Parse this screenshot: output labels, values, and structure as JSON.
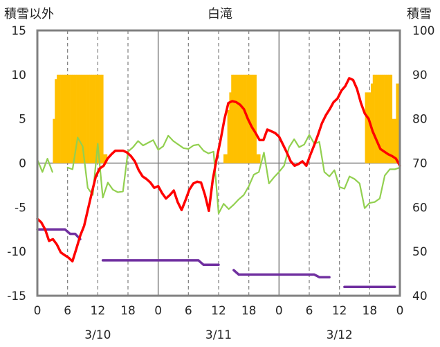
{
  "chart_data": {
    "type": "bar+line",
    "title": "白滝",
    "ylabel_left": "積雪以外",
    "ylabel_right": "積雪",
    "ylim_left": [
      -15,
      15
    ],
    "ylim_right": [
      40,
      100
    ],
    "yticks_left": [
      15,
      10,
      5,
      0,
      -5,
      -10,
      -15
    ],
    "yticks_right": [
      100,
      90,
      80,
      70,
      60,
      50,
      40
    ],
    "x_hour_labels": [
      "0",
      "6",
      "12",
      "18",
      "0",
      "6",
      "12",
      "18",
      "0",
      "6",
      "12",
      "18",
      "0"
    ],
    "x_date_labels": [
      "3/10",
      "3/11",
      "3/12"
    ],
    "grid": "dashed vertical every 6h, solid at day boundaries",
    "colors": {
      "snow_depth": "#ffc000",
      "red": "#ff0000",
      "green": "#92d050",
      "purple": "#7030a0"
    },
    "series": [
      {
        "axis": "right",
        "style": "bar",
        "color": "#ffc000",
        "values": [
          null,
          null,
          null,
          null,
          null,
          null,
          null,
          null,
          80,
          89,
          90,
          90,
          90,
          90,
          90,
          90,
          90,
          90,
          90,
          90,
          90,
          90,
          90,
          90,
          90,
          90,
          90,
          90,
          90,
          90,
          90,
          90,
          90,
          90,
          72,
          72,
          null,
          null,
          null,
          null,
          null,
          null,
          null,
          null,
          null,
          null,
          null,
          null,
          null,
          null,
          null,
          null,
          null,
          null,
          null,
          null,
          null,
          null,
          null,
          null,
          null,
          null,
          null,
          null,
          null,
          null,
          null,
          null,
          null,
          null,
          null,
          null,
          null,
          null,
          null,
          null,
          null,
          null,
          null,
          null,
          null,
          null,
          null,
          null,
          null,
          null,
          null,
          null,
          null,
          null,
          null,
          null,
          null,
          null,
          null,
          null,
          72,
          72,
          82,
          86,
          90,
          90,
          90,
          90,
          90,
          90,
          90,
          90,
          90,
          90,
          90,
          90,
          90,
          72,
          72,
          null,
          null,
          null,
          null,
          null,
          null,
          null,
          null,
          null,
          null,
          null,
          null,
          null,
          null,
          null,
          null,
          null,
          null,
          null,
          null,
          null,
          null,
          null,
          null,
          null,
          null,
          null,
          null,
          null,
          null,
          null,
          null,
          null,
          null,
          null,
          null,
          null,
          null,
          null,
          null,
          null,
          null,
          null,
          null,
          null,
          null,
          null,
          null,
          null,
          null,
          null,
          null,
          null,
          null,
          86,
          86,
          86,
          88,
          90,
          90,
          90,
          90,
          90,
          90,
          90,
          90,
          90,
          90,
          80,
          80,
          88,
          88
        ]
      },
      {
        "axis": "left",
        "style": "line",
        "color": "#ff0000",
        "values": [
          -6.3,
          -6.7,
          -7.5,
          -8.8,
          -8.6,
          -9.2,
          -10.1,
          -10.4,
          -10.7,
          -11.1,
          -9.7,
          -8.2,
          -7.1,
          -5.2,
          -3.3,
          -1.5,
          -0.6,
          -0.3,
          0.5,
          1.0,
          1.4,
          1.4,
          1.4,
          1.2,
          0.8,
          0.2,
          -0.8,
          -1.5,
          -1.8,
          -2.2,
          -2.8,
          -2.6,
          -3.4,
          -4.0,
          -3.6,
          -3.1,
          -4.4,
          -5.3,
          -4.2,
          -3.0,
          -2.3,
          -2.1,
          -2.2,
          -3.6,
          -5.4,
          -1.9,
          0.5,
          2.6,
          5.0,
          6.8,
          7.0,
          6.9,
          6.6,
          6.1,
          5.0,
          4.1,
          3.4,
          2.6,
          2.6,
          3.8,
          3.6,
          3.4,
          3.0,
          2.1,
          1.2,
          0.2,
          -0.3,
          -0.1,
          0.2,
          -0.3,
          0.9,
          2.0,
          3.2,
          4.5,
          5.4,
          6.1,
          6.9,
          7.3,
          8.2,
          8.7,
          9.6,
          9.4,
          8.4,
          6.8,
          5.6,
          5.0,
          3.6,
          2.6,
          1.6,
          1.3,
          1.0,
          0.8,
          0.5,
          -0.3
        ],
        "x_start_hour": 0,
        "x_step_hours": 0.75
      },
      {
        "axis": "left",
        "style": "line",
        "color": "#92d050",
        "segments": [
          {
            "x": [
              0,
              1,
              2,
              3
            ],
            "values": [
              0.4,
              -1.0,
              0.5,
              -1.0
            ]
          },
          {
            "x": [
              6,
              7,
              8,
              9,
              10,
              11,
              12,
              13,
              14,
              15,
              16,
              17,
              18,
              19,
              20,
              21,
              22,
              23,
              24,
              25,
              26,
              27,
              28,
              29,
              30,
              31,
              32,
              33,
              34,
              35,
              36,
              37,
              38,
              39,
              40,
              41,
              42,
              43,
              44,
              45,
              46,
              47,
              48,
              49,
              50,
              51,
              52,
              53,
              54,
              55,
              56,
              57,
              58,
              59,
              60,
              61,
              62,
              63,
              64,
              65,
              66,
              67,
              68,
              69,
              70,
              71,
              72
            ],
            "values": [
              -0.5,
              -0.7,
              2.9,
              1.9,
              -2.8,
              -3.6,
              2.2,
              -3.9,
              -2.2,
              -3.0,
              -3.3,
              -3.2,
              1.3,
              1.8,
              2.5,
              2.0,
              2.3,
              2.6,
              1.5,
              1.9,
              3.1,
              2.5,
              2.1,
              1.7,
              1.6,
              2.0,
              2.1,
              1.4,
              1.1,
              1.3,
              -5.7,
              -4.6,
              -5.2,
              -4.7,
              -4.1,
              -3.6,
              -2.6,
              -1.3,
              -1.0,
              1.2,
              -2.3,
              -1.6,
              -1.0,
              -0.3,
              1.8,
              2.7,
              1.8,
              2.1,
              3.2,
              2.2,
              2.4,
              -1.0,
              -1.5,
              -0.8,
              -2.7,
              -2.9,
              -1.5,
              -1.8,
              -2.3,
              -5.1,
              -4.5,
              -4.4,
              -4.0,
              -1.4,
              -0.7,
              -0.7,
              -0.5
            ]
          }
        ]
      },
      {
        "axis": "left",
        "style": "line",
        "color": "#7030a0",
        "segments": [
          {
            "x": [
              0,
              5.5,
              6.5,
              7.5,
              8.5
            ],
            "values": [
              -7.5,
              -7.5,
              -8.0,
              -8.0,
              -8.6
            ]
          },
          {
            "x": [
              13,
              32,
              33,
              34,
              36
            ],
            "values": [
              -11.0,
              -11.0,
              -11.5,
              -11.5,
              -11.5
            ]
          },
          {
            "x": [
              39,
              40,
              41,
              55,
              56,
              57,
              58
            ],
            "values": [
              -12.1,
              -12.6,
              -12.6,
              -12.6,
              -12.9,
              -12.9,
              -12.9
            ]
          },
          {
            "x": [
              61,
              71
            ],
            "values": [
              -14.0,
              -14.0
            ]
          }
        ]
      }
    ]
  }
}
